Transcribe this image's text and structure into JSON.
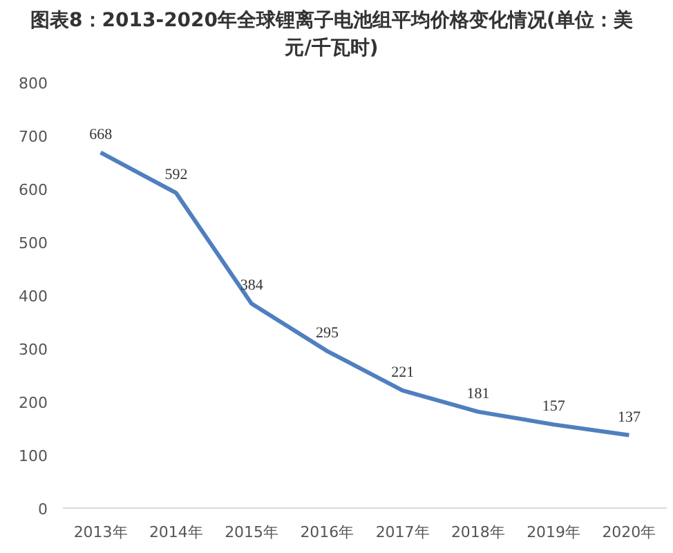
{
  "chart_data": {
    "type": "line",
    "title": "图表8：2013-2020年全球锂离子电池组平均价格变化情况(单位：美元/千瓦时)",
    "categories": [
      "2013年",
      "2014年",
      "2015年",
      "2016年",
      "2017年",
      "2018年",
      "2019年",
      "2020年"
    ],
    "series": [
      {
        "color": "#4f7fbf",
        "values": [
          668,
          592,
          384,
          295,
          221,
          181,
          157,
          137
        ]
      }
    ],
    "ylim": [
      0,
      800
    ],
    "yticks": [
      0,
      100,
      200,
      300,
      400,
      500,
      600,
      700,
      800
    ],
    "data_labels": true,
    "grid": false,
    "marker": "none",
    "line_style": "solid"
  }
}
